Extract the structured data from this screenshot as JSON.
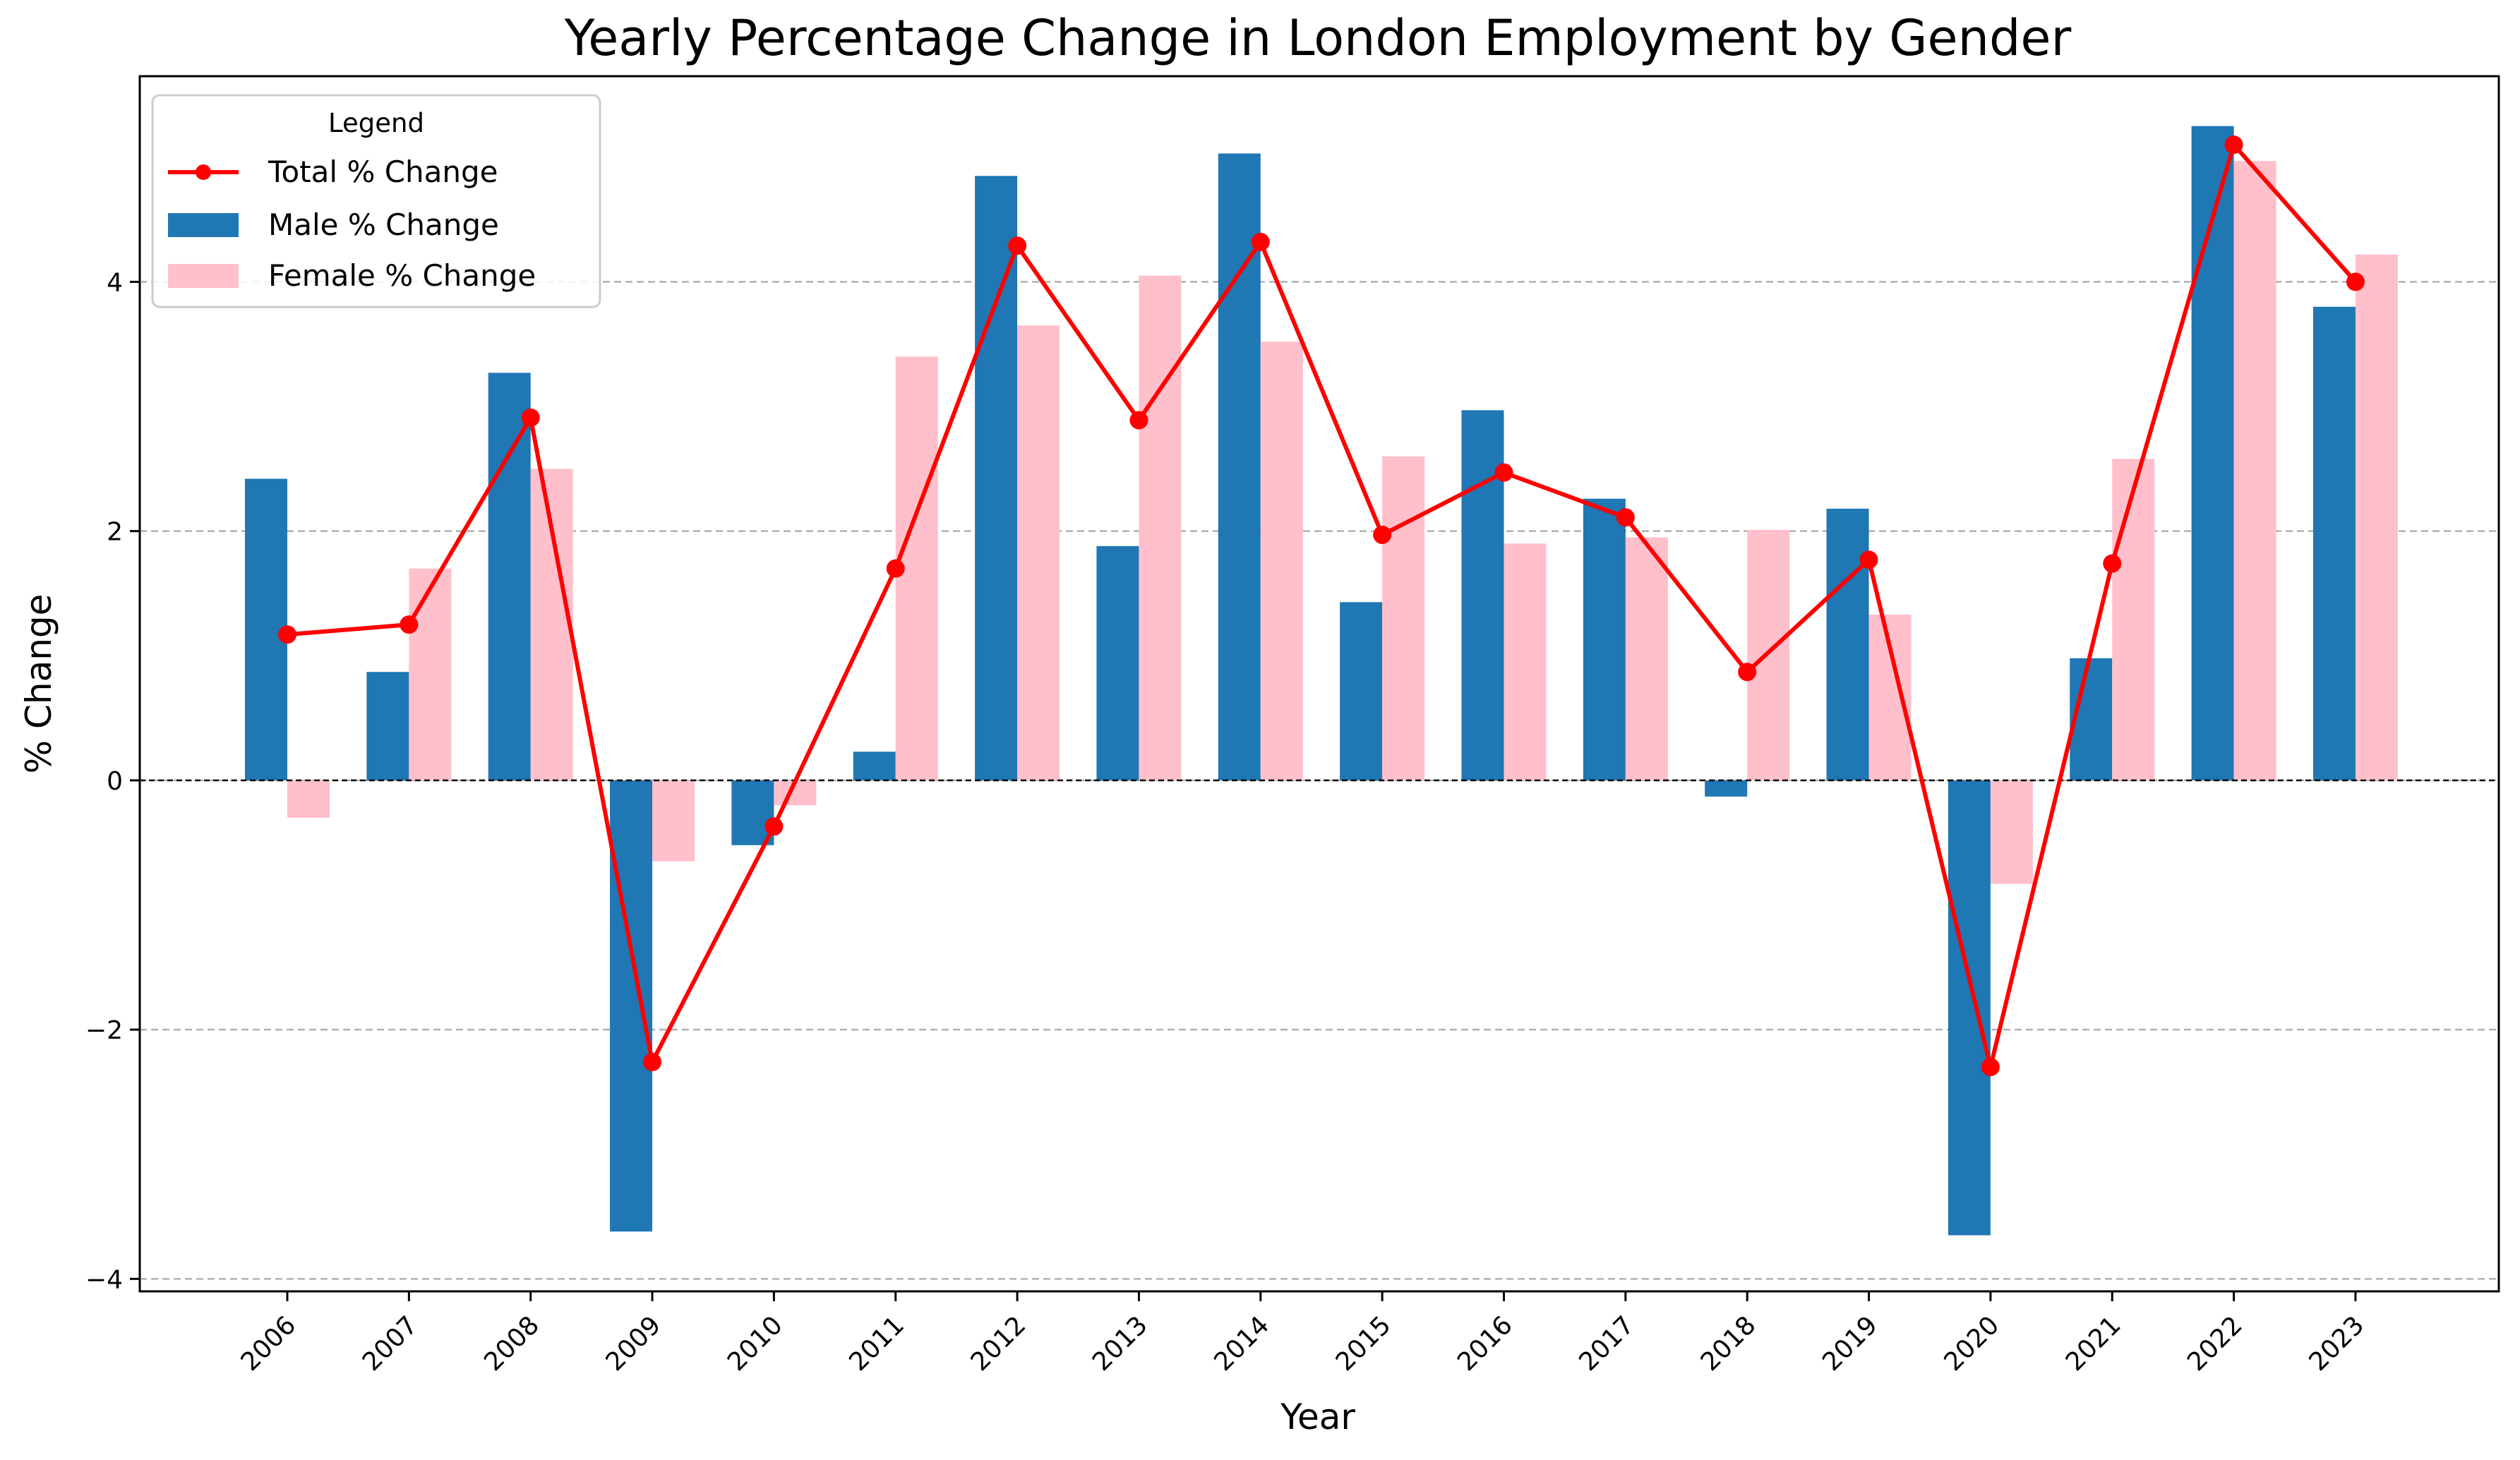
{
  "chart_data": {
    "type": "bar",
    "title": "Yearly Percentage Change in London Employment by Gender",
    "xlabel": "Year",
    "ylabel": "% Change",
    "categories": [
      "2006",
      "2007",
      "2008",
      "2009",
      "2010",
      "2011",
      "2012",
      "2013",
      "2014",
      "2015",
      "2016",
      "2017",
      "2018",
      "2019",
      "2020",
      "2021",
      "2022",
      "2023"
    ],
    "series": [
      {
        "name": "Male % Change",
        "type": "bar",
        "color": "#1f77b4",
        "values": [
          2.42,
          0.87,
          3.27,
          -3.62,
          -0.52,
          0.23,
          4.85,
          1.88,
          5.03,
          1.43,
          2.97,
          2.26,
          -0.13,
          2.18,
          -3.65,
          0.98,
          5.25,
          3.8
        ]
      },
      {
        "name": "Female % Change",
        "type": "bar",
        "color": "#ffc0cb",
        "values": [
          -0.3,
          1.7,
          2.5,
          -0.65,
          -0.2,
          3.4,
          3.65,
          4.05,
          3.52,
          2.6,
          1.9,
          1.95,
          2.01,
          1.33,
          -0.83,
          2.58,
          4.97,
          4.22
        ]
      },
      {
        "name": "Total % Change",
        "type": "line",
        "color": "#ff0000",
        "values": [
          1.17,
          1.25,
          2.91,
          -2.26,
          -0.37,
          1.7,
          4.29,
          2.89,
          4.32,
          1.97,
          2.47,
          2.11,
          0.87,
          1.77,
          -2.3,
          1.74,
          5.1,
          4.0
        ]
      }
    ],
    "ylim": [
      -4.1,
      5.65
    ],
    "yticks": [
      "4",
      "2",
      "0",
      "−2",
      "−4"
    ],
    "ytick_values": [
      4,
      2,
      0,
      -2,
      -4
    ],
    "grid": "y dashed",
    "zero_line": true,
    "legend": {
      "title": "Legend",
      "placement": "top-left",
      "entries": [
        "Total % Change",
        "Male % Change",
        "Female % Change"
      ]
    }
  }
}
